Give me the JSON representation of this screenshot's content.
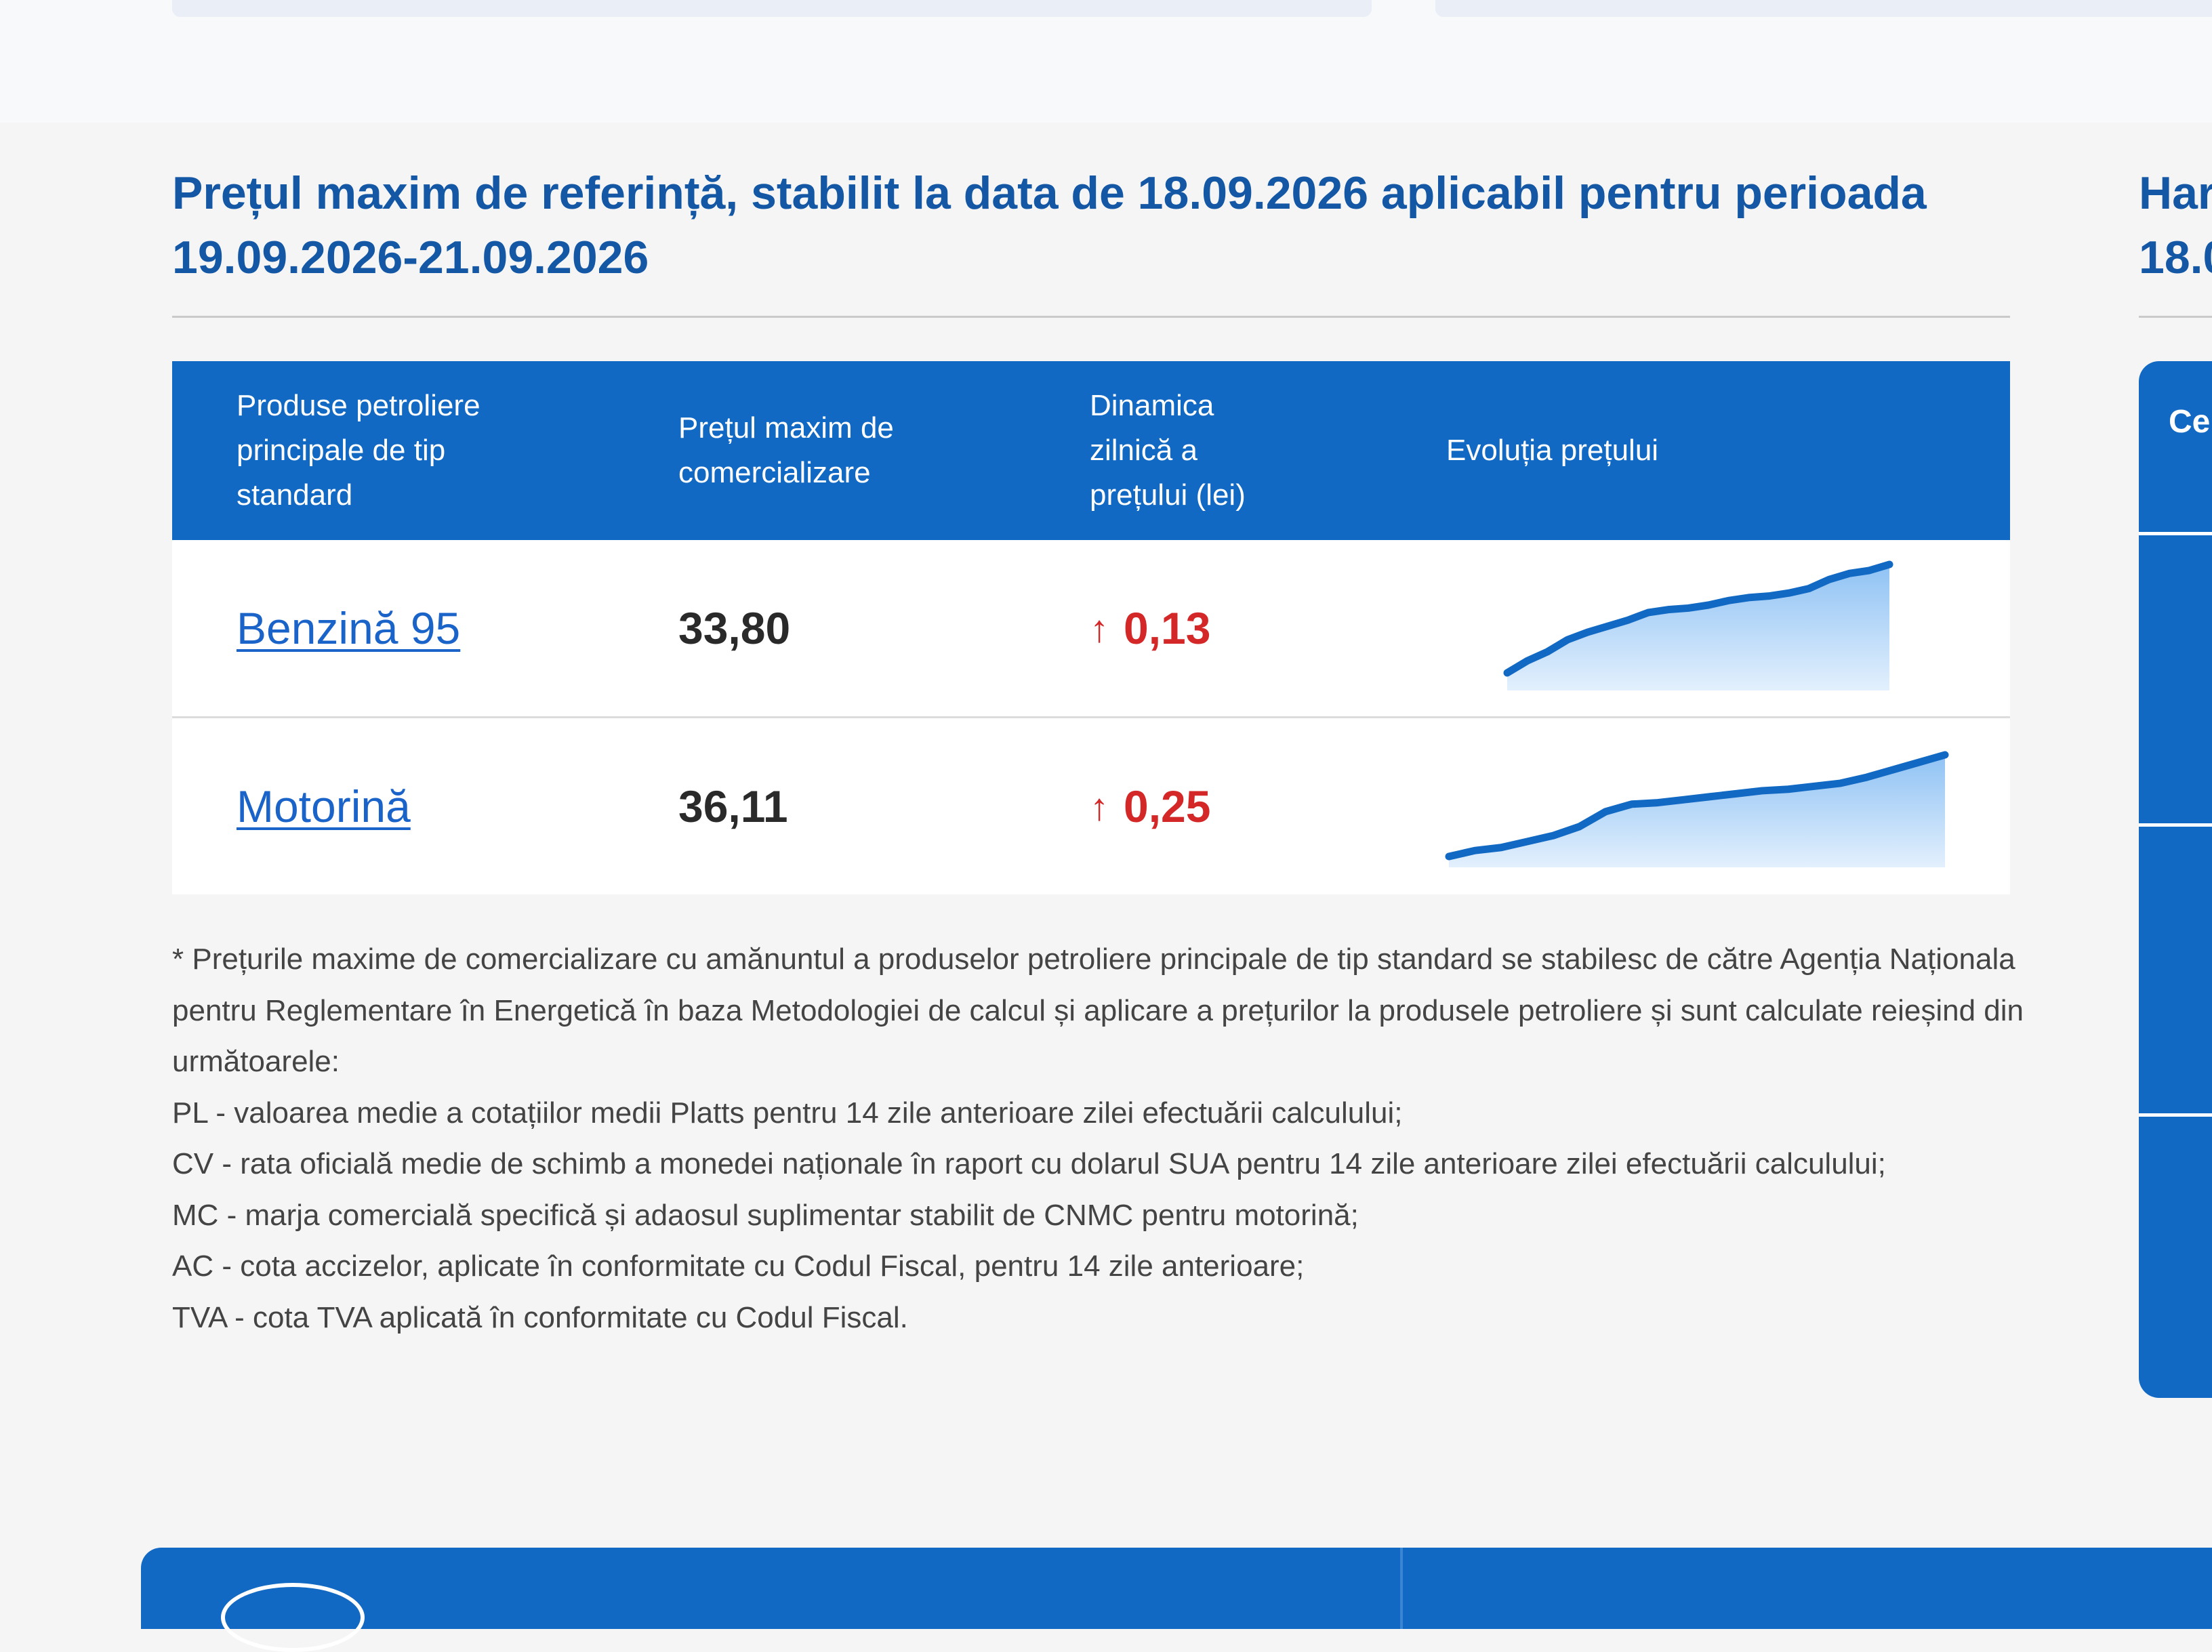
{
  "section": {
    "title": "Prețul maxim de referință, stabilit la data de 18.09.2026 aplicabil pentru perioada 19.09.2026-21.09.2026"
  },
  "table": {
    "headers": {
      "product": "Produse petroliere\nprincipale de tip\nstandard",
      "max_price": "Prețul maxim de\ncomercializare",
      "daily_change": "Dinamica\nzilnică a\nprețului (lei)",
      "evolution": "Evoluția prețului"
    },
    "rows": [
      {
        "product": "Benzină 95",
        "price": "33,80",
        "change": "0,13",
        "trend_icon": "arrow-up-icon",
        "trend_color": "#d42828",
        "sparkline": [
          0,
          8,
          14,
          22,
          27,
          31,
          35,
          40,
          42,
          43,
          45,
          48,
          50,
          51,
          53,
          56,
          62,
          66,
          68,
          72
        ]
      },
      {
        "product": "Motorină",
        "price": "36,11",
        "change": "0,25",
        "trend_icon": "arrow-up-icon",
        "trend_color": "#d42828",
        "sparkline": [
          0,
          4,
          6,
          10,
          14,
          20,
          30,
          35,
          36,
          38,
          40,
          42,
          44,
          45,
          47,
          49,
          53,
          58,
          63,
          68
        ]
      }
    ]
  },
  "notes": [
    "* Prețurile maxime de comercializare cu amănuntul a produselor petroliere principale de tip standard se stabilesc de către Agenția Naționala pentru Reglementare în Energetică în baza Metodologiei de calcul și aplicare a prețurilor la produsele petroliere și sunt calculate reieșind din următoarele:",
    "PL - valoarea medie a cotațiilor medii Platts pentru 14 zile anterioare zilei efectuării calculului;",
    "CV - rata oficială medie de schimb a monedei naționale în raport cu dolarul SUA pentru 14 zile anterioare zilei efectuării calculului;",
    "MC - marja comercială specifică și adaosul suplimentar stabilit de CNMC pentru motorină;",
    "AC - cota accizelor, aplicate în conformitate cu Codul Fiscal, pentru 14 zile anterioare;",
    "TVA - cota TVA aplicată în conformitate cu Codul Fiscal."
  ],
  "right_partial": {
    "title": "Har\n18.0",
    "header": "Ce"
  },
  "colors": {
    "primary": "#1169c4",
    "title": "#1457a5",
    "link": "#1a63c8",
    "increase": "#d42828"
  }
}
